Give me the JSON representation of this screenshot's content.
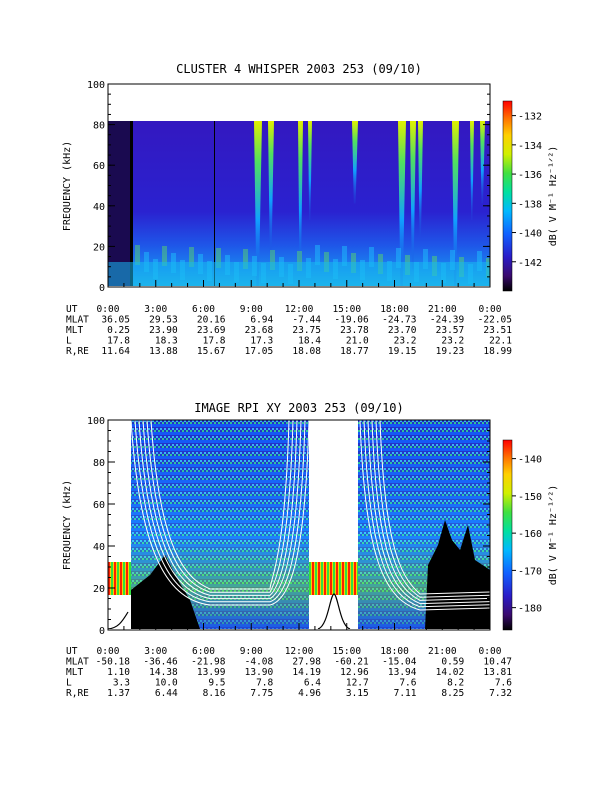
{
  "chart_data": [
    {
      "type": "heatmap",
      "title": "CLUSTER 4 WHISPER 2003 253 (09/10)",
      "ylabel": "FREQUENCY (kHz)",
      "ylim": [
        0,
        100
      ],
      "yticks": [
        "0",
        "20",
        "40",
        "60",
        "80",
        "100"
      ],
      "colorbar": {
        "label": "dB( V M⁻¹ Hz⁻¹ᐟ²)",
        "ticks": [
          "-132",
          "-134",
          "-136",
          "-138",
          "-140",
          "-142"
        ],
        "range": [
          -144,
          -131
        ]
      },
      "ephemeris": {
        "row_labels": [
          "UT",
          "MLAT",
          "MLT",
          "L",
          "R,RE"
        ],
        "columns": [
          {
            "UT": "0:00",
            "MLAT": "36.05",
            "MLT": "0.25",
            "L": "17.8",
            "R,RE": "11.64"
          },
          {
            "UT": "3:00",
            "MLAT": "29.53",
            "MLT": "23.90",
            "L": "18.3",
            "R,RE": "13.88"
          },
          {
            "UT": "6:00",
            "MLAT": "20.16",
            "MLT": "23.69",
            "L": "17.8",
            "R,RE": "15.67"
          },
          {
            "UT": "9:00",
            "MLAT": "6.94",
            "MLT": "23.68",
            "L": "17.3",
            "R,RE": "17.05"
          },
          {
            "UT": "12:00",
            "MLAT": "-7.44",
            "MLT": "23.75",
            "L": "18.4",
            "R,RE": "18.08"
          },
          {
            "UT": "15:00",
            "MLAT": "-19.06",
            "MLT": "23.78",
            "L": "21.0",
            "R,RE": "18.77"
          },
          {
            "UT": "18:00",
            "MLAT": "-24.73",
            "MLT": "23.70",
            "L": "23.2",
            "R,RE": "19.15"
          },
          {
            "UT": "21:00",
            "MLAT": "-24.39",
            "MLT": "23.57",
            "L": "23.2",
            "R,RE": "19.23"
          },
          {
            "UT": "0:00",
            "MLAT": "-22.05",
            "MLT": "23.51",
            "L": "22.1",
            "R,RE": "18.99"
          }
        ]
      }
    },
    {
      "type": "heatmap",
      "title": "IMAGE RPI XY 2003 253 (09/10)",
      "ylabel": "FREQUENCY (kHz)",
      "ylim": [
        0,
        100
      ],
      "yticks": [
        "0",
        "20",
        "40",
        "60",
        "80",
        "100"
      ],
      "colorbar": {
        "label": "dB( V M⁻¹ Hz⁻¹ᐟ²)",
        "ticks": [
          "-140",
          "-150",
          "-160",
          "-170",
          "-180"
        ],
        "range": [
          -186,
          -135
        ]
      },
      "ephemeris": {
        "row_labels": [
          "UT",
          "MLAT",
          "MLT",
          "L",
          "R,RE"
        ],
        "columns": [
          {
            "UT": "0:00",
            "MLAT": "-50.18",
            "MLT": "1.10",
            "L": "3.3",
            "R,RE": "1.37"
          },
          {
            "UT": "3:00",
            "MLAT": "-36.46",
            "MLT": "14.38",
            "L": "10.0",
            "R,RE": "6.44"
          },
          {
            "UT": "6:00",
            "MLAT": "-21.98",
            "MLT": "13.99",
            "L": "9.5",
            "R,RE": "8.16"
          },
          {
            "UT": "9:00",
            "MLAT": "-4.08",
            "MLT": "13.90",
            "L": "7.8",
            "R,RE": "7.75"
          },
          {
            "UT": "12:00",
            "MLAT": "27.98",
            "MLT": "14.19",
            "L": "6.4",
            "R,RE": "4.96"
          },
          {
            "UT": "15:00",
            "MLAT": "-60.21",
            "MLT": "12.96",
            "L": "12.7",
            "R,RE": "3.15"
          },
          {
            "UT": "18:00",
            "MLAT": "-15.04",
            "MLT": "13.94",
            "L": "7.6",
            "R,RE": "7.11"
          },
          {
            "UT": "21:00",
            "MLAT": "0.59",
            "MLT": "14.02",
            "L": "8.2",
            "R,RE": "8.25"
          },
          {
            "UT": "0:00",
            "MLAT": "10.47",
            "MLT": "13.81",
            "L": "7.6",
            "R,RE": "7.32"
          }
        ]
      }
    }
  ]
}
